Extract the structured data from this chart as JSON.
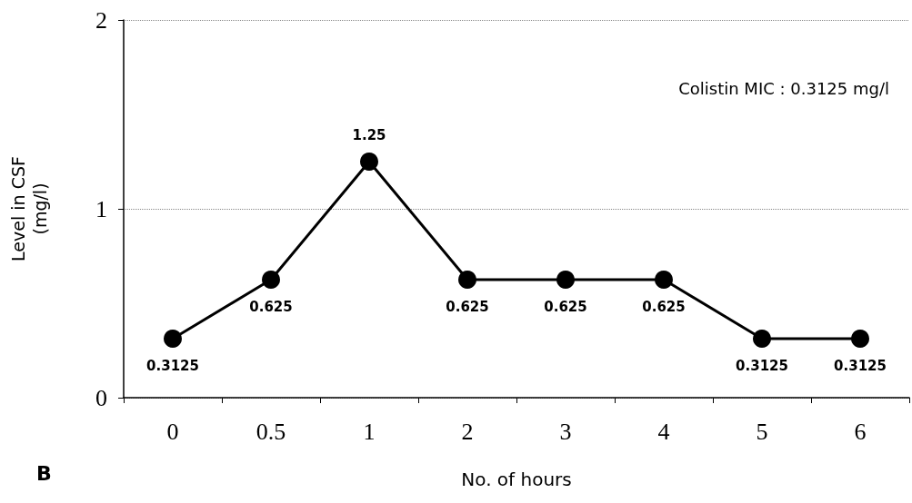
{
  "chart_data": {
    "type": "line",
    "categories": [
      "0",
      "0.5",
      "1",
      "2",
      "3",
      "4",
      "5",
      "6"
    ],
    "values": [
      0.3125,
      0.625,
      1.25,
      0.625,
      0.625,
      0.625,
      0.3125,
      0.3125
    ],
    "color": "#000000",
    "marker": "circle",
    "line_style": "solid",
    "data_labels": true,
    "xlabel": "No. of hours",
    "ylabel": "Level in CSF\n(mg/l)",
    "ylim": [
      0,
      2
    ],
    "yticks": [
      0,
      1,
      2
    ],
    "grid": "y",
    "annotations": [
      "Colistin MIC : 0.3125 mg/l",
      "B"
    ]
  }
}
